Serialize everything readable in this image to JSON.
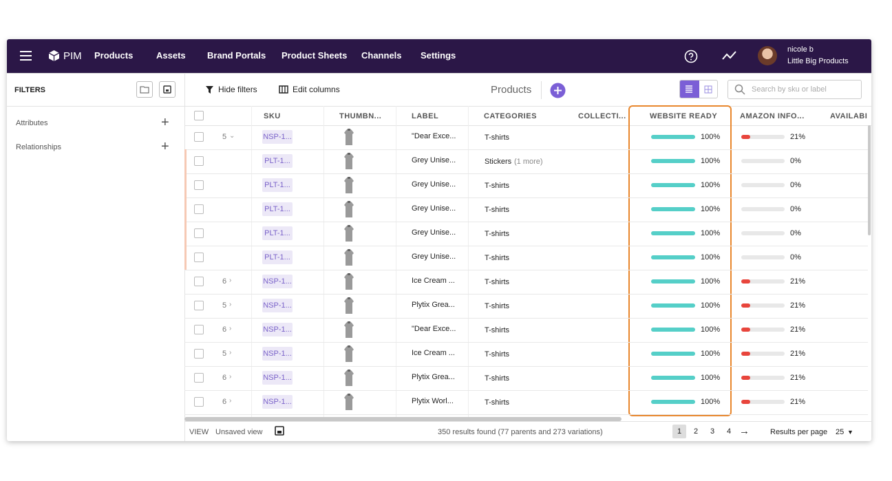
{
  "nav": {
    "logo": "PIM",
    "items": [
      "Products",
      "Assets",
      "Brand Portals",
      "Product Sheets",
      "Channels",
      "Settings"
    ],
    "user": {
      "name": "nicole b",
      "company": "Little Big Products"
    }
  },
  "filters": {
    "title": "FILTERS",
    "sections": [
      "Attributes",
      "Relationships"
    ]
  },
  "toolbar": {
    "hide_filters": "Hide filters",
    "edit_columns": "Edit columns",
    "title": "Products",
    "search_placeholder": "Search by sku or label"
  },
  "table": {
    "columns": [
      "SKU",
      "THUMBN...",
      "LABEL",
      "CATEGORIES",
      "COLLECTI...",
      "WEBSITE READY",
      "AMAZON INFO...",
      "AVAILABI"
    ],
    "rows": [
      {
        "count": "5",
        "expanded": true,
        "sku": "NSP-1...",
        "label": "\"Dear Exce...",
        "category": "T-shirts",
        "website_ready": {
          "value": 100,
          "label": "100%"
        },
        "amazon": {
          "value": 21,
          "label": "21%"
        }
      },
      {
        "sku": "PLT-1...",
        "label": "Grey Unise...",
        "category": "Stickers",
        "category_more": "(1 more)",
        "website_ready": {
          "value": 100,
          "label": "100%"
        },
        "amazon": {
          "value": 0,
          "label": "0%"
        }
      },
      {
        "sku": "PLT-1...",
        "label": "Grey Unise...",
        "category": "T-shirts",
        "website_ready": {
          "value": 100,
          "label": "100%"
        },
        "amazon": {
          "value": 0,
          "label": "0%"
        }
      },
      {
        "sku": "PLT-1...",
        "label": "Grey Unise...",
        "category": "T-shirts",
        "website_ready": {
          "value": 100,
          "label": "100%"
        },
        "amazon": {
          "value": 0,
          "label": "0%"
        }
      },
      {
        "sku": "PLT-1...",
        "label": "Grey Unise...",
        "category": "T-shirts",
        "website_ready": {
          "value": 100,
          "label": "100%"
        },
        "amazon": {
          "value": 0,
          "label": "0%"
        }
      },
      {
        "sku": "PLT-1...",
        "label": "Grey Unise...",
        "category": "T-shirts",
        "website_ready": {
          "value": 100,
          "label": "100%"
        },
        "amazon": {
          "value": 0,
          "label": "0%"
        }
      },
      {
        "count": "6",
        "sku": "NSP-1...",
        "label": "Ice Cream ...",
        "category": "T-shirts",
        "website_ready": {
          "value": 100,
          "label": "100%"
        },
        "amazon": {
          "value": 21,
          "label": "21%"
        }
      },
      {
        "count": "5",
        "sku": "NSP-1...",
        "label": "Plytix Grea...",
        "category": "T-shirts",
        "website_ready": {
          "value": 100,
          "label": "100%"
        },
        "amazon": {
          "value": 21,
          "label": "21%"
        }
      },
      {
        "count": "6",
        "sku": "NSP-1...",
        "label": "\"Dear Exce...",
        "category": "T-shirts",
        "website_ready": {
          "value": 100,
          "label": "100%"
        },
        "amazon": {
          "value": 21,
          "label": "21%"
        }
      },
      {
        "count": "5",
        "sku": "NSP-1...",
        "label": "Ice Cream ...",
        "category": "T-shirts",
        "website_ready": {
          "value": 100,
          "label": "100%"
        },
        "amazon": {
          "value": 21,
          "label": "21%"
        }
      },
      {
        "count": "6",
        "sku": "NSP-1...",
        "label": "Plytix Grea...",
        "category": "T-shirts",
        "website_ready": {
          "value": 100,
          "label": "100%"
        },
        "amazon": {
          "value": 21,
          "label": "21%"
        }
      },
      {
        "count": "6",
        "sku": "NSP-1...",
        "label": "Plytix Worl...",
        "category": "T-shirts",
        "website_ready": {
          "value": 100,
          "label": "100%"
        },
        "amazon": {
          "value": 21,
          "label": "21%"
        }
      }
    ]
  },
  "footer": {
    "view": "VIEW",
    "view_name": "Unsaved view",
    "results": "350 results found (77 parents and 273 variations)",
    "pages": [
      "1",
      "2",
      "3",
      "4"
    ],
    "current_page": "1",
    "per_page_label": "Results per page",
    "per_page": "25"
  }
}
